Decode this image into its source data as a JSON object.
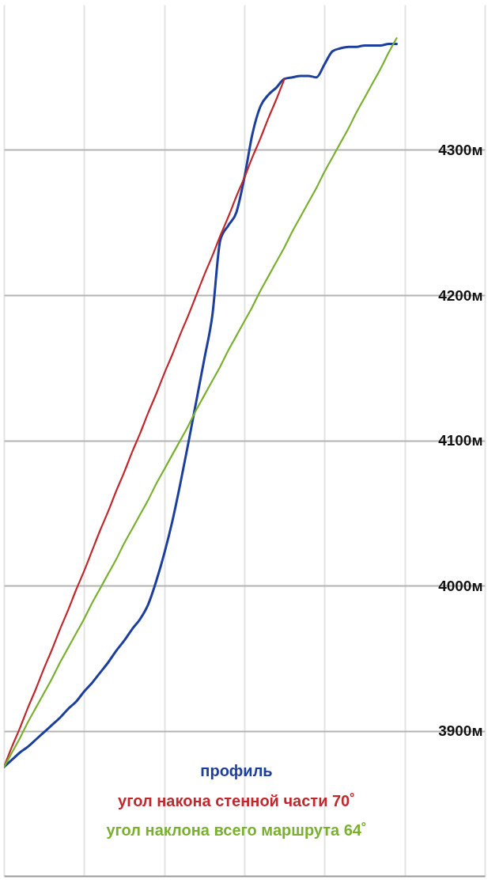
{
  "chart_data": {
    "type": "line",
    "categories": [
      null,
      null,
      null,
      null,
      null,
      null,
      null,
      null,
      null,
      null,
      null,
      null,
      null,
      null,
      null,
      null,
      null,
      null,
      null,
      null,
      null,
      null,
      null,
      null,
      null,
      null,
      null,
      null,
      null,
      null,
      null,
      null,
      null,
      null,
      null,
      null,
      null,
      null,
      null,
      null,
      null,
      null,
      null,
      null,
      null,
      null,
      null,
      null,
      null,
      null,
      null,
      null,
      null,
      null,
      null,
      null,
      null,
      null,
      null,
      null,
      null
    ],
    "ylim": [
      3800,
      4400
    ],
    "yticks": [
      {
        "value": 3900,
        "label": "3900м"
      },
      {
        "value": 4000,
        "label": "4000м"
      },
      {
        "value": 4100,
        "label": "4100м"
      },
      {
        "value": 4200,
        "label": "4200м"
      },
      {
        "value": 4300,
        "label": "4300м"
      }
    ],
    "tick_labels": "y",
    "grid": true,
    "series": [
      {
        "name": "профиль",
        "color": "#1c3f9e",
        "values": [
          3875,
          3880,
          3885,
          3889,
          3894,
          3899,
          3904,
          3909,
          3915,
          3920,
          3927,
          3933,
          3940,
          3947,
          3955,
          3962,
          3970,
          3977,
          3987,
          4003,
          4022,
          4044,
          4070,
          4098,
          4127,
          4156,
          4186,
          4238,
          4248,
          4257,
          4281,
          4311,
          4330,
          4338,
          4343,
          4349,
          4350,
          4351,
          4351,
          4350,
          4359,
          4368,
          4370,
          4371,
          4371,
          4372,
          4372,
          4372,
          4373,
          4373,
          null,
          null,
          null,
          null,
          null,
          null,
          null,
          null,
          null,
          null,
          null
        ]
      },
      {
        "name": "угол накона стенной части 70˚",
        "color": "#c0282d",
        "values": [
          3875,
          3889,
          3902,
          3916,
          3929,
          3943,
          3956,
          3970,
          3983,
          3997,
          4010,
          4024,
          4038,
          4051,
          4065,
          4078,
          4092,
          4105,
          4119,
          4132,
          4146,
          4159,
          4173,
          4186,
          4200,
          4214,
          4227,
          4241,
          4254,
          4268,
          4281,
          4295,
          4308,
          4322,
          4335,
          4349,
          null,
          null,
          null,
          null,
          null,
          null,
          null,
          null,
          null,
          null,
          null,
          null,
          null,
          null,
          null,
          null,
          null,
          null,
          null,
          null,
          null,
          null,
          null,
          null,
          null
        ]
      },
      {
        "name": "угол наклона всего маршрута 64˚",
        "color": "#7ab030",
        "values": [
          3875,
          3885,
          3895,
          3906,
          3916,
          3926,
          3936,
          3947,
          3957,
          3967,
          3977,
          3988,
          3998,
          4008,
          4018,
          4029,
          4039,
          4049,
          4059,
          4070,
          4080,
          4090,
          4100,
          4110,
          4121,
          4131,
          4141,
          4151,
          4162,
          4172,
          4182,
          4192,
          4203,
          4213,
          4223,
          4233,
          4244,
          4254,
          4264,
          4274,
          4285,
          4295,
          4305,
          4315,
          4326,
          4336,
          4346,
          4356,
          4367,
          4377,
          null,
          null,
          null,
          null,
          null,
          null,
          null,
          null,
          null,
          null,
          null
        ]
      }
    ]
  }
}
